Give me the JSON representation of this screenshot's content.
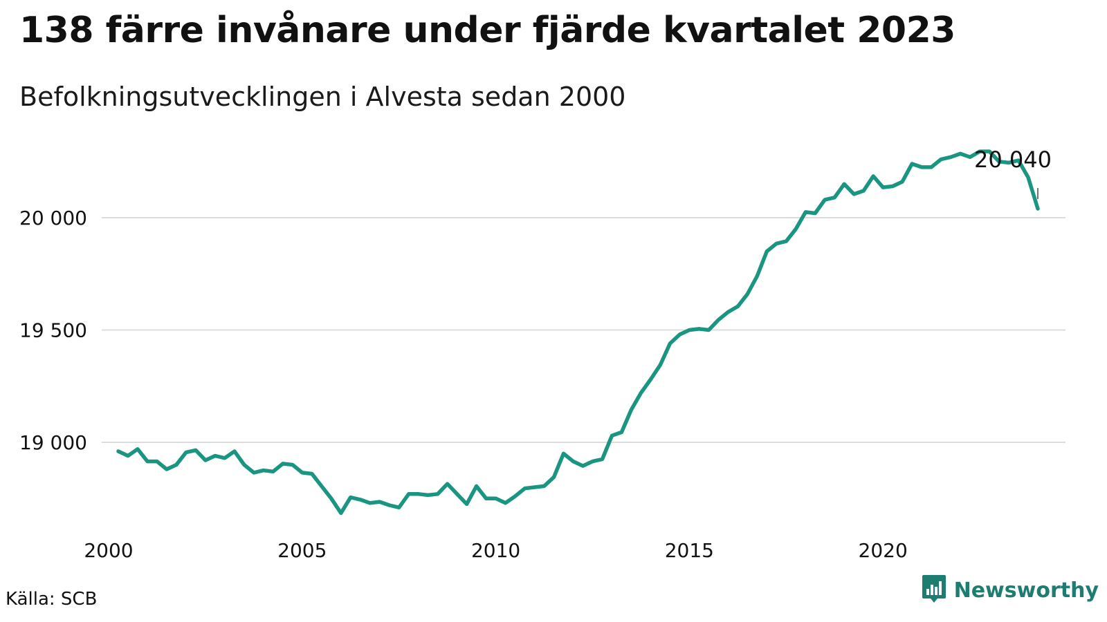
{
  "colors": {
    "series": "#1a9582",
    "brand": "#1e7d71",
    "grid": "#dcdcdc"
  },
  "source": "Källa: SCB",
  "brand": {
    "name": "Newsworthy",
    "icon": "bar-chart-badge-icon"
  },
  "chart_data": {
    "type": "line",
    "title": "138 färre invånare under fjärde kvartalet 2023",
    "subtitle": "Befolkningsutvecklingen i Alvesta sedan 2000",
    "xlabel": "",
    "ylabel": "",
    "xlim": [
      2000,
      2024
    ],
    "ylim": [
      18600,
      20350
    ],
    "x_ticks": [
      {
        "value": 2000,
        "label": "2000"
      },
      {
        "value": 2005,
        "label": "2005"
      },
      {
        "value": 2010,
        "label": "2010"
      },
      {
        "value": 2015,
        "label": "2015"
      },
      {
        "value": 2020,
        "label": "2020"
      }
    ],
    "y_ticks": [
      {
        "value": 19000,
        "label": "19 000"
      },
      {
        "value": 19500,
        "label": "19 500"
      },
      {
        "value": 20000,
        "label": "20 000"
      }
    ],
    "grid": true,
    "annotation": {
      "label": "20 040",
      "x": 2024.0,
      "y": 20040
    },
    "series": [
      {
        "x": [
          2000.25,
          2000.5,
          2000.75,
          2001.0,
          2001.25,
          2001.5,
          2001.75,
          2002.0,
          2002.25,
          2002.5,
          2002.75,
          2003.0,
          2003.25,
          2003.5,
          2003.75,
          2004.0,
          2004.25,
          2004.5,
          2004.75,
          2005.0,
          2005.25,
          2005.5,
          2005.75,
          2006.0,
          2006.25,
          2006.5,
          2006.75,
          2007.0,
          2007.25,
          2007.5,
          2007.75,
          2008.0,
          2008.25,
          2008.5,
          2008.75,
          2009.0,
          2009.25,
          2009.5,
          2009.75,
          2010.0,
          2010.25,
          2010.5,
          2010.75,
          2011.0,
          2011.25,
          2011.5,
          2011.75,
          2012.0,
          2012.25,
          2012.5,
          2012.75,
          2013.0,
          2013.25,
          2013.5,
          2013.75,
          2014.0,
          2014.25,
          2014.5,
          2014.75,
          2015.0,
          2015.25,
          2015.5,
          2015.75,
          2016.0,
          2016.25,
          2016.5,
          2016.75,
          2017.0,
          2017.25,
          2017.5,
          2017.75,
          2018.0,
          2018.25,
          2018.5,
          2018.75,
          2019.0,
          2019.25,
          2019.5,
          2019.75,
          2020.0,
          2020.25,
          2020.5,
          2020.75,
          2021.0,
          2021.25,
          2021.5,
          2021.75,
          2022.0,
          2022.25,
          2022.5,
          2022.75,
          2023.0,
          2023.25,
          2023.5,
          2023.75,
          2024.0
        ],
        "values": [
          18960,
          18940,
          18970,
          18915,
          18915,
          18880,
          18900,
          18955,
          18965,
          18920,
          18940,
          18930,
          18960,
          18900,
          18865,
          18875,
          18870,
          18905,
          18900,
          18865,
          18860,
          18805,
          18750,
          18685,
          18755,
          18745,
          18730,
          18735,
          18720,
          18710,
          18770,
          18770,
          18765,
          18770,
          18815,
          18770,
          18725,
          18805,
          18750,
          18750,
          18730,
          18760,
          18795,
          18800,
          18805,
          18845,
          18950,
          18915,
          18895,
          18915,
          18925,
          19030,
          19045,
          19145,
          19220,
          19280,
          19345,
          19440,
          19480,
          19500,
          19505,
          19500,
          19545,
          19580,
          19605,
          19660,
          19740,
          19850,
          19885,
          19895,
          19950,
          20025,
          20020,
          20080,
          20090,
          20150,
          20105,
          20120,
          20185,
          20135,
          20140,
          20160,
          20240,
          20225,
          20225,
          20260,
          20270,
          20285,
          20270,
          20295,
          20295,
          20250,
          20245,
          20255,
          20180,
          20040
        ]
      }
    ]
  }
}
